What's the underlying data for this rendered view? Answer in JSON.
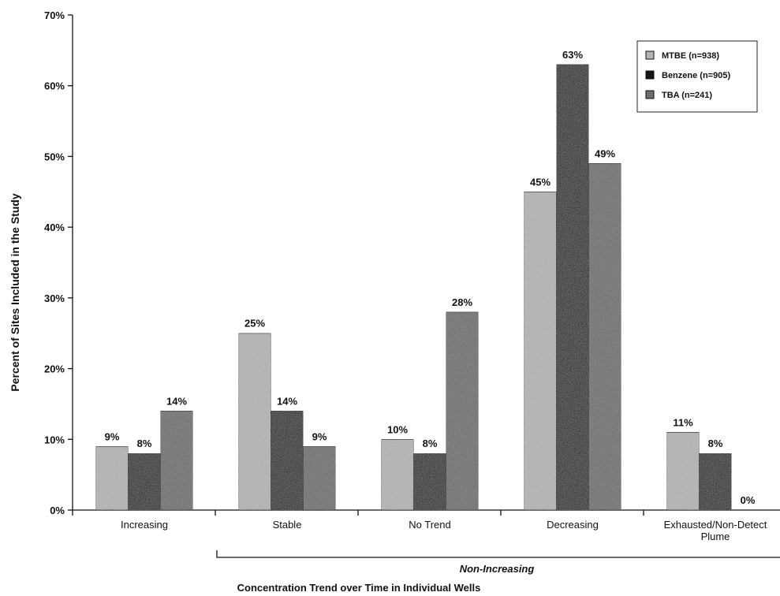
{
  "chart_data": {
    "type": "bar",
    "categories": [
      "Increasing",
      "Stable",
      "No Trend",
      "Decreasing",
      "Exhausted/Non-Detect Plume"
    ],
    "series": [
      {
        "name": "MTBE (n=938)",
        "values": [
          9,
          25,
          10,
          45,
          11
        ],
        "color": "#b4b4b4"
      },
      {
        "name": "Benzene (n=905)",
        "values": [
          8,
          14,
          8,
          63,
          8
        ],
        "color": "#161616"
      },
      {
        "name": "TBA (n=241)",
        "values": [
          14,
          9,
          28,
          49,
          0
        ],
        "color": "#6b6b6b"
      }
    ],
    "data_labels": [
      [
        "9%",
        "25%",
        "10%",
        "45%",
        "11%"
      ],
      [
        "8%",
        "14%",
        "8%",
        "63%",
        "8%"
      ],
      [
        "14%",
        "9%",
        "28%",
        "49%",
        "0%"
      ]
    ],
    "ylim": [
      0,
      70
    ],
    "yticks": [
      "0%",
      "10%",
      "20%",
      "30%",
      "40%",
      "50%",
      "60%",
      "70%"
    ],
    "ylabel": "Percent of Sites Included in the Study",
    "xlabel": "Concentration Trend over Time in Individual Wells",
    "group_label": "Non-Increasing",
    "group_categories": [
      "Stable",
      "No Trend",
      "Decreasing",
      "Exhausted/Non-Detect Plume"
    ],
    "legend_position": "top-right",
    "grid": false
  }
}
